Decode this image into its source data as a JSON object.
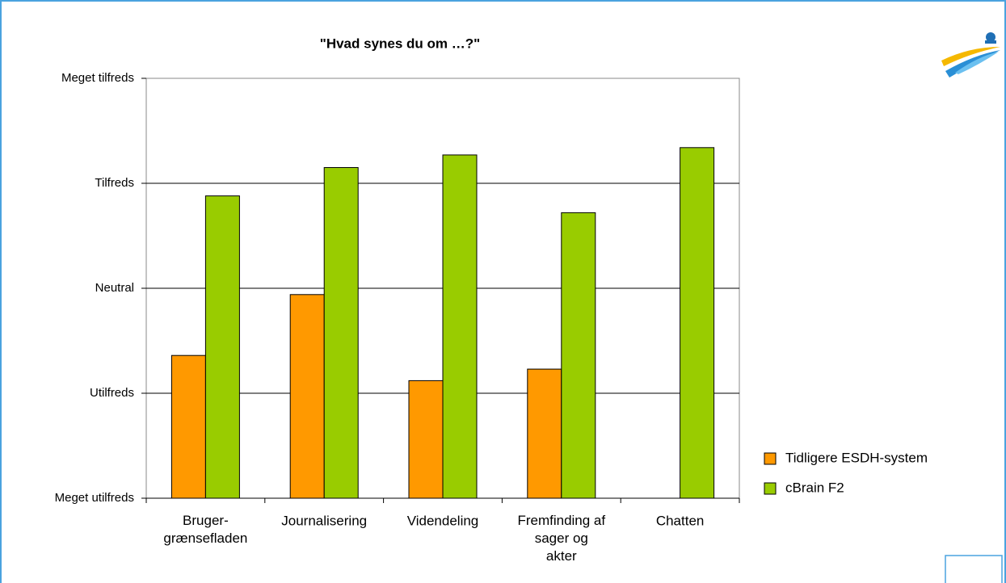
{
  "chart_data": {
    "type": "bar",
    "title": "\"Hvad synes du om …?\"",
    "categories": [
      "Bruger-\ngrænsefladen",
      "Journalisering",
      "Videndeling",
      "Fremfinding af\nsager og\nakter",
      "Chatten"
    ],
    "series": [
      {
        "name": "Tidligere ESDH-system",
        "color": "#ff9900",
        "values": [
          2.36,
          2.94,
          2.12,
          2.23,
          null
        ]
      },
      {
        "name": "cBrain F2",
        "color": "#99cc00",
        "values": [
          3.88,
          4.15,
          4.27,
          3.72,
          4.34
        ]
      }
    ],
    "ylim": [
      1,
      5
    ],
    "yticks": [
      {
        "value": 1,
        "label": "Meget utilfreds"
      },
      {
        "value": 2,
        "label": "Utilfreds"
      },
      {
        "value": 3,
        "label": "Neutral"
      },
      {
        "value": 4,
        "label": "Tilfreds"
      },
      {
        "value": 5,
        "label": "Meget tilfreds"
      }
    ],
    "grid": true,
    "legend": "right"
  }
}
